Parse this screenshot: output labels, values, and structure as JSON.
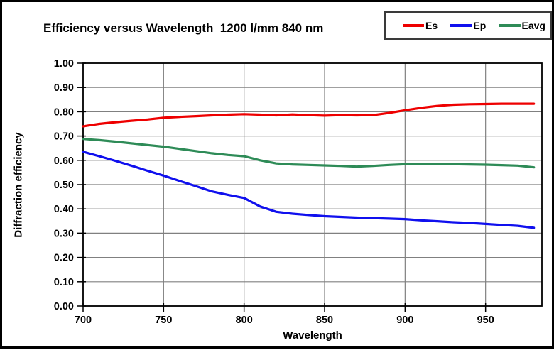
{
  "chart_data": {
    "type": "line",
    "title": "Efficiency versus Wavelength  1200 l/mm 840 nm",
    "xlabel": "Wavelength",
    "ylabel": "Diffraction efficiency",
    "xlim": [
      700,
      985
    ],
    "ylim": [
      0.0,
      1.0
    ],
    "x_ticks": [
      700,
      750,
      800,
      850,
      900,
      950
    ],
    "y_ticks": [
      "0.00",
      "0.10",
      "0.20",
      "0.30",
      "0.40",
      "0.50",
      "0.60",
      "0.70",
      "0.80",
      "0.90",
      "1.00"
    ],
    "grid": true,
    "legend_position": "top-right",
    "axis_color": "#000000",
    "grid_color": "#808080",
    "x": [
      700,
      710,
      720,
      730,
      740,
      750,
      760,
      770,
      780,
      790,
      800,
      810,
      820,
      830,
      840,
      850,
      860,
      870,
      880,
      890,
      900,
      910,
      920,
      930,
      940,
      950,
      960,
      970,
      980
    ],
    "series": [
      {
        "name": "Es",
        "color": "#ee0000",
        "values": [
          0.74,
          0.75,
          0.757,
          0.763,
          0.768,
          0.775,
          0.779,
          0.782,
          0.785,
          0.788,
          0.79,
          0.788,
          0.785,
          0.789,
          0.786,
          0.784,
          0.786,
          0.785,
          0.786,
          0.795,
          0.806,
          0.816,
          0.824,
          0.829,
          0.831,
          0.832,
          0.833,
          0.833,
          0.833
        ]
      },
      {
        "name": "Ep",
        "color": "#1010ee",
        "values": [
          0.635,
          0.617,
          0.598,
          0.578,
          0.557,
          0.537,
          0.515,
          0.494,
          0.472,
          0.458,
          0.445,
          0.41,
          0.388,
          0.38,
          0.375,
          0.37,
          0.367,
          0.364,
          0.362,
          0.36,
          0.358,
          0.353,
          0.349,
          0.345,
          0.342,
          0.338,
          0.334,
          0.33,
          0.322
        ]
      },
      {
        "name": "Eavg",
        "color": "#2e8b57",
        "values": [
          0.688,
          0.683,
          0.677,
          0.67,
          0.663,
          0.656,
          0.647,
          0.638,
          0.629,
          0.622,
          0.617,
          0.6,
          0.587,
          0.583,
          0.581,
          0.579,
          0.577,
          0.574,
          0.577,
          0.581,
          0.584,
          0.584,
          0.584,
          0.584,
          0.583,
          0.582,
          0.58,
          0.578,
          0.571
        ]
      }
    ]
  }
}
